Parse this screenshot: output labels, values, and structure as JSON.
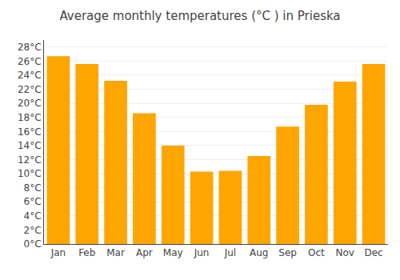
{
  "chart_data": {
    "type": "bar",
    "title": "Average monthly temperatures (°C ) in Prieska",
    "categories": [
      "Jan",
      "Feb",
      "Mar",
      "Apr",
      "May",
      "Jun",
      "Jul",
      "Aug",
      "Sep",
      "Oct",
      "Nov",
      "Dec"
    ],
    "values": [
      26.7,
      25.6,
      23.2,
      18.6,
      14.0,
      10.3,
      10.4,
      12.5,
      16.7,
      19.8,
      23.1,
      25.6
    ],
    "color": "#FFA500",
    "ylim": [
      0,
      29
    ],
    "yticks": [
      {
        "value": 0,
        "label": "0°C"
      },
      {
        "value": 2,
        "label": "2°C"
      },
      {
        "value": 4,
        "label": "4°C"
      },
      {
        "value": 6,
        "label": "6°C"
      },
      {
        "value": 8,
        "label": "8°C"
      },
      {
        "value": 10,
        "label": "10°C"
      },
      {
        "value": 12,
        "label": "12°C"
      },
      {
        "value": 14,
        "label": "14°C"
      },
      {
        "value": 16,
        "label": "16°C"
      },
      {
        "value": 18,
        "label": "18°C"
      },
      {
        "value": 20,
        "label": "20°C"
      },
      {
        "value": 22,
        "label": "22°C"
      },
      {
        "value": 24,
        "label": "24°C"
      },
      {
        "value": 26,
        "label": "26°C"
      },
      {
        "value": 28,
        "label": "28°C"
      }
    ],
    "grid": true
  }
}
